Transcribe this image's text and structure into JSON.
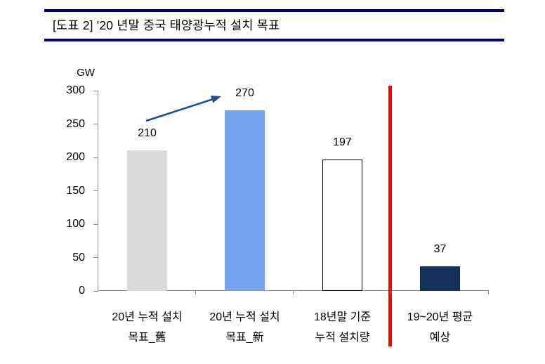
{
  "header": {
    "title": "[도표 2] '20 년말 중국 태양광누적 설치 목표"
  },
  "chart": {
    "unit_label": "GW",
    "y_tick_labels": [
      "300",
      "250",
      "200",
      "150",
      "100",
      "50",
      "0"
    ],
    "bars": [
      {
        "value": 210,
        "value_label": "210",
        "cat_line1": "20년 누적 설치",
        "cat_line2": "목표_舊",
        "color": "#D9D9D9",
        "outlined": false
      },
      {
        "value": 270,
        "value_label": "270",
        "cat_line1": "20년 누적 설치",
        "cat_line2": "목표_新",
        "color": "#74A2EE",
        "outlined": false
      },
      {
        "value": 197,
        "value_label": "197",
        "cat_line1": "18년말 기준",
        "cat_line2": "누적 설치량",
        "color": "#FFFFFF",
        "outlined": true
      },
      {
        "value": 37,
        "value_label": "37",
        "cat_line1": "19~20년 평균",
        "cat_line2": "예상",
        "color": "#15325B",
        "outlined": false
      }
    ],
    "colors": {
      "header_rule": "#000080",
      "axis": "#8E8E8E",
      "arrow": "#1F4E96",
      "divider": "#FF0000"
    }
  },
  "chart_data": {
    "type": "bar",
    "title": "[도표 2] '20 년말 중국 태양광누적 설치 목표",
    "categories": [
      "20년 누적 설치 목표_舊",
      "20년 누적 설치 목표_新",
      "18년말 기준 누적 설치량",
      "19~20년 평균 예상"
    ],
    "values": [
      210,
      270,
      197,
      37
    ],
    "ylabel": "GW",
    "ylim": [
      0,
      300
    ],
    "ytick_interval": 50,
    "grid": false,
    "legend": false,
    "bar_colors": [
      "#D9D9D9",
      "#74A2EE",
      "#FFFFFF",
      "#15325B"
    ],
    "annotations": [
      {
        "type": "arrow",
        "from": "bar 20년 누적 설치 목표_舊 (210)",
        "to": "value label 270",
        "color": "#1F4E96"
      },
      {
        "type": "vertical_divider",
        "between": [
          "18년말 기준 누적 설치량",
          "19~20년 평균 예상"
        ],
        "color": "#FF0000"
      }
    ]
  }
}
